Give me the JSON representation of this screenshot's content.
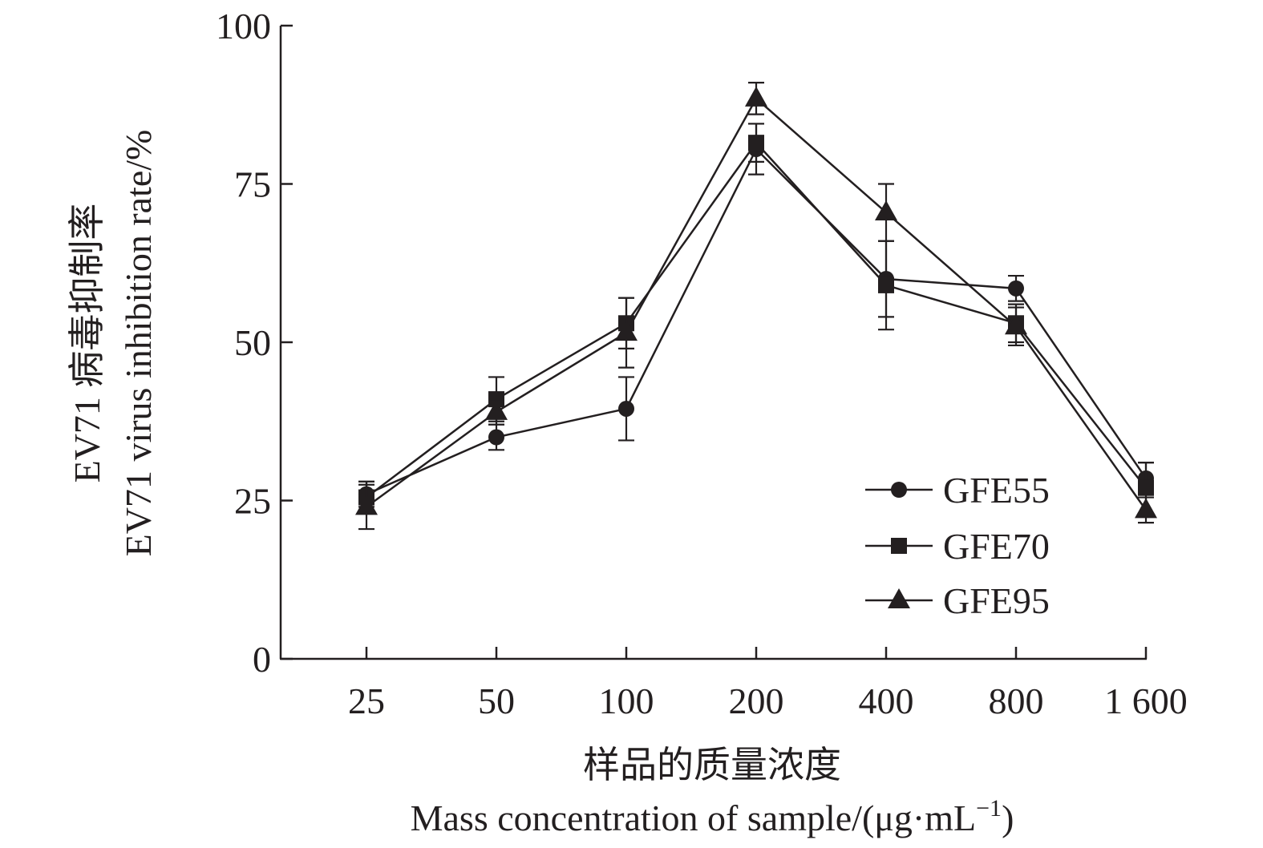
{
  "chart_data": {
    "type": "line",
    "title": "",
    "categories": [
      "25",
      "50",
      "100",
      "200",
      "400",
      "800",
      "1 600"
    ],
    "ylim": [
      0,
      100
    ],
    "yticks": [
      "0",
      "25",
      "50",
      "75",
      "100"
    ],
    "ylabel_cn": "EV71 病毒抑制率",
    "ylabel_en": "EV71 virus inhibition rate/%",
    "xlabel_cn": "样品的质量浓度",
    "xlabel_en_main": "Mass concentration of sample/(μg·mL",
    "xlabel_en_sup": "−1",
    "xlabel_en_close": ")",
    "legend_position": "lower-right",
    "series": [
      {
        "name": "GFE55",
        "marker": "circle",
        "values": [
          26,
          35,
          39.5,
          80.5,
          60,
          58.5,
          28.5
        ],
        "errors": [
          2,
          2,
          5,
          4,
          6,
          2,
          2.5
        ]
      },
      {
        "name": "GFE70",
        "marker": "square",
        "values": [
          25.5,
          41,
          53,
          81.5,
          59,
          53,
          27
        ],
        "errors": [
          2.5,
          3.5,
          4,
          3,
          7,
          3,
          4
        ]
      },
      {
        "name": "GFE95",
        "marker": "triangle",
        "values": [
          24,
          39,
          51.5,
          88.5,
          70.5,
          52.5,
          23.5
        ],
        "errors": [
          3.5,
          2,
          5.5,
          2.5,
          4.5,
          3,
          2
        ]
      }
    ]
  }
}
